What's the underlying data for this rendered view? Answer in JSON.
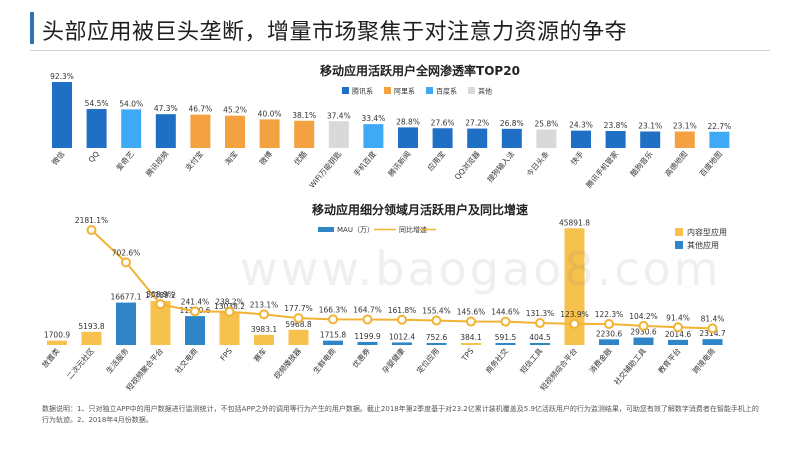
{
  "page_title": "头部应用被巨头垄断，增量市场聚焦于对注意力资源的争夺",
  "footnote": "数据说明：1、只对独立APP中的用户数据进行监测统计，不包括APP之外的调用等行为产生的用户数据。截止2018年第2季度基于对23.2亿累计装机覆盖及5.9亿活跃用户的行为监测结果，可助您有效了解数字消费者在智能手机上的行为轨迹。2、2018年4月份数据。",
  "watermark": "www.baogao8.com",
  "chart_data": [
    {
      "type": "bar",
      "title": "移动应用活跃用户全网渗透率TOP20",
      "legend": [
        {
          "name": "腾讯系",
          "color": "#1f6fc5"
        },
        {
          "name": "阿里系",
          "color": "#f4a142"
        },
        {
          "name": "百度系",
          "color": "#3fa9f5"
        },
        {
          "name": "其他",
          "color": "#d9d9d9"
        }
      ],
      "categories": [
        "微信",
        "QQ",
        "爱奇艺",
        "腾讯视频",
        "支付宝",
        "淘宝",
        "微博",
        "优酷",
        "WiFi万能钥匙",
        "手机百度",
        "腾讯新闻",
        "应用宝",
        "QQ浏览器",
        "搜狗输入法",
        "今日头条",
        "快手",
        "腾讯手机管家",
        "酷狗音乐",
        "高德地图",
        "百度地图"
      ],
      "values": [
        92.3,
        54.5,
        54.0,
        47.3,
        46.7,
        45.2,
        40.0,
        38.1,
        37.4,
        33.4,
        28.8,
        27.6,
        27.2,
        26.8,
        25.8,
        24.3,
        23.8,
        23.1,
        23.1,
        22.7
      ],
      "value_labels": [
        "92.3%",
        "54.5%",
        "54.0%",
        "47.3%",
        "46.7%",
        "45.2%",
        "40.0%",
        "38.1%",
        "37.4%",
        "33.4%",
        "28.8%",
        "27.6%",
        "27.2%",
        "26.8%",
        "25.8%",
        "24.3%",
        "23.8%",
        "23.1%",
        "23.1%",
        "22.7%"
      ],
      "groups": [
        "腾讯系",
        "腾讯系",
        "百度系",
        "腾讯系",
        "阿里系",
        "阿里系",
        "阿里系",
        "阿里系",
        "其他",
        "百度系",
        "腾讯系",
        "腾讯系",
        "腾讯系",
        "腾讯系",
        "其他",
        "腾讯系",
        "腾讯系",
        "腾讯系",
        "阿里系",
        "百度系"
      ]
    },
    {
      "type": "bar+line",
      "title": "移动应用细分领域月活跃用户及同比增速",
      "legend": [
        {
          "name": "MAU（万）",
          "color": "#2e86c8"
        },
        {
          "name": "同比增速",
          "color": "#f2b233"
        }
      ],
      "side_legend": [
        {
          "name": "内容型应用",
          "color": "#f6c14d"
        },
        {
          "name": "其他应用",
          "color": "#2e86c8"
        }
      ],
      "categories": [
        "放置类",
        "二次元社区",
        "生活服务",
        "短视频聚合平台",
        "社交电商",
        "FPS",
        "赛车",
        "视频播放器",
        "生鲜电商",
        "优惠券",
        "孕婴健康",
        "定位应用",
        "TPS",
        "商务社交",
        "短信工具",
        "短视频综合平台",
        "消费金融",
        "社交辅助工具",
        "教育平台",
        "跨境电商"
      ],
      "types": [
        "内容型应用",
        "内容型应用",
        "其他应用",
        "内容型应用",
        "其他应用",
        "内容型应用",
        "内容型应用",
        "内容型应用",
        "其他应用",
        "其他应用",
        "其他应用",
        "其他应用",
        "内容型应用",
        "其他应用",
        "其他应用",
        "内容型应用",
        "其他应用",
        "其他应用",
        "其他应用",
        "其他应用"
      ],
      "mau": [
        1700.9,
        5193.8,
        16677.1,
        17289.2,
        11370.6,
        13038.2,
        3983.1,
        5968.8,
        1715.8,
        1199.9,
        1012.4,
        752.6,
        384.1,
        591.5,
        404.5,
        45891.8,
        2230.6,
        2930.6,
        2014.6,
        2314.7
      ],
      "mau_labels": [
        "1700.9",
        "5193.8",
        "16677.1",
        "17289.2",
        "11370.6",
        "13038.2",
        "3983.1",
        "5968.8",
        "1715.8",
        "1199.9",
        "1012.4",
        "752.6",
        "384.1",
        "591.5",
        "404.5",
        "45891.8",
        "2230.6",
        "2930.6",
        "2014.6",
        "2314.7"
      ],
      "growth": [
        null,
        2181.1,
        702.6,
        308.9,
        241.4,
        238.2,
        213.1,
        177.7,
        166.3,
        164.7,
        161.8,
        155.4,
        145.6,
        144.6,
        131.3,
        123.9,
        122.3,
        104.2,
        91.4,
        81.4
      ],
      "growth_labels": [
        "",
        "2181.1%",
        "702.6%",
        "308.9%",
        "241.4%",
        "238.2%",
        "213.1%",
        "177.7%",
        "166.3%",
        "164.7%",
        "161.8%",
        "155.4%",
        "145.6%",
        "144.6%",
        "131.3%",
        "123.9%",
        "122.3%",
        "104.2%",
        "91.4%",
        "81.4%"
      ]
    }
  ]
}
